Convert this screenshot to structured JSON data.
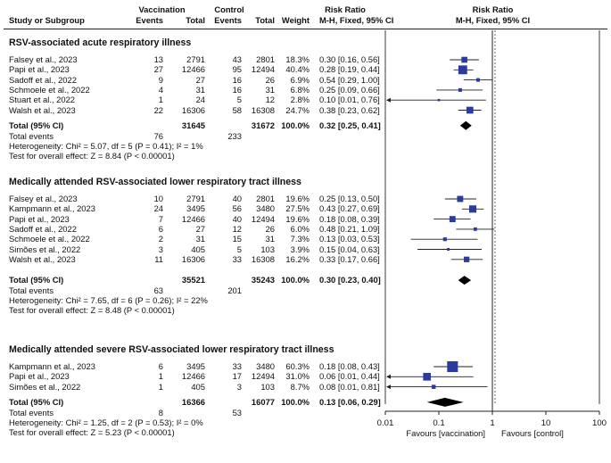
{
  "header": {
    "study": "Study or Subgroup",
    "vaccination": "Vaccination",
    "control": "Control",
    "events": "Events",
    "total": "Total",
    "weight": "Weight",
    "rr_title": "Risk Ratio",
    "rr_method": "M-H, Fixed, 95% CI",
    "plot_title": "Risk Ratio",
    "plot_method": "M-H, Fixed, 95% CI"
  },
  "chart_data": {
    "type": "forest",
    "scale": "log",
    "x_range": [
      0.01,
      100
    ],
    "reference_line": 1,
    "axis_ticks": [
      "0.01",
      "0.1",
      "1",
      "10",
      "100"
    ],
    "favours_left": "Favours [vaccination]",
    "favours_right": "Favours [control]",
    "subgroups": [
      {
        "title": "RSV-associated acute respiratory illness",
        "studies": [
          {
            "study": "Falsey et al., 2023",
            "ve": "13",
            "vt": "2791",
            "ce": "43",
            "ct": "2801",
            "w": "18.3%",
            "ci": "0.30 [0.16, 0.56]",
            "rr": 0.3,
            "lo": 0.16,
            "hi": 0.56,
            "wn": 18.3
          },
          {
            "study": "Papi et al., 2023",
            "ve": "27",
            "vt": "12466",
            "ce": "95",
            "ct": "12494",
            "w": "40.4%",
            "ci": "0.28 [0.19, 0.44]",
            "rr": 0.28,
            "lo": 0.19,
            "hi": 0.44,
            "wn": 40.4
          },
          {
            "study": "Sadoff et al., 2022",
            "ve": "9",
            "vt": "27",
            "ce": "16",
            "ct": "26",
            "w": "6.9%",
            "ci": "0.54 [0.29, 1.00]",
            "rr": 0.54,
            "lo": 0.29,
            "hi": 1.0,
            "wn": 6.9
          },
          {
            "study": "Schmoele et al., 2022",
            "ve": "4",
            "vt": "31",
            "ce": "16",
            "ct": "31",
            "w": "6.8%",
            "ci": "0.25 [0.09, 0.66]",
            "rr": 0.25,
            "lo": 0.09,
            "hi": 0.66,
            "wn": 6.8
          },
          {
            "study": "Stuart et al., 2022",
            "ve": "1",
            "vt": "24",
            "ce": "5",
            "ct": "12",
            "w": "2.8%",
            "ci": "0.10 [0.01, 0.76]",
            "rr": 0.1,
            "lo": 0.01,
            "hi": 0.76,
            "wn": 2.8
          },
          {
            "study": "Walsh et al., 2023",
            "ve": "22",
            "vt": "16306",
            "ce": "58",
            "ct": "16308",
            "w": "24.7%",
            "ci": "0.38 [0.23, 0.62]",
            "rr": 0.38,
            "lo": 0.23,
            "hi": 0.62,
            "wn": 24.7
          }
        ],
        "total": {
          "label": "Total (95% CI)",
          "vt": "31645",
          "ct": "31672",
          "w": "100.0%",
          "ci": "0.32 [0.25, 0.41]",
          "rr": 0.32,
          "lo": 0.25,
          "hi": 0.41
        },
        "events": {
          "label": "Total events",
          "v": "76",
          "c": "233"
        },
        "heterogeneity": "Heterogeneity: Chi² = 5.07, df = 5 (P = 0.41); I² = 1%",
        "overall": "Test for overall effect: Z = 8.84 (P < 0.00001)"
      },
      {
        "title": "Medically attended RSV-associated lower respiratory tract illness",
        "studies": [
          {
            "study": "Falsey et al., 2023",
            "ve": "10",
            "vt": "2791",
            "ce": "40",
            "ct": "2801",
            "w": "19.6%",
            "ci": "0.25 [0.13, 0.50]",
            "rr": 0.25,
            "lo": 0.13,
            "hi": 0.5,
            "wn": 19.6
          },
          {
            "study": "Kampmann et al., 2023",
            "ve": "24",
            "vt": "3495",
            "ce": "56",
            "ct": "3480",
            "w": "27.5%",
            "ci": "0.43 [0.27, 0.69]",
            "rr": 0.43,
            "lo": 0.27,
            "hi": 0.69,
            "wn": 27.5
          },
          {
            "study": "Papi et al., 2023",
            "ve": "7",
            "vt": "12466",
            "ce": "40",
            "ct": "12494",
            "w": "19.6%",
            "ci": "0.18 [0.08, 0.39]",
            "rr": 0.18,
            "lo": 0.08,
            "hi": 0.39,
            "wn": 19.6
          },
          {
            "study": "Sadoff et al., 2022",
            "ve": "6",
            "vt": "27",
            "ce": "12",
            "ct": "26",
            "w": "6.0%",
            "ci": "0.48 [0.21, 1.09]",
            "rr": 0.48,
            "lo": 0.21,
            "hi": 1.09,
            "wn": 6.0
          },
          {
            "study": "Schmoele et al., 2022",
            "ve": "2",
            "vt": "31",
            "ce": "15",
            "ct": "31",
            "w": "7.3%",
            "ci": "0.13 [0.03, 0.53]",
            "rr": 0.13,
            "lo": 0.03,
            "hi": 0.53,
            "wn": 7.3
          },
          {
            "study": "Simões et al., 2022",
            "ve": "3",
            "vt": "405",
            "ce": "5",
            "ct": "103",
            "w": "3.9%",
            "ci": "0.15 [0.04, 0.63]",
            "rr": 0.15,
            "lo": 0.04,
            "hi": 0.63,
            "wn": 3.9
          },
          {
            "study": "Walsh et al., 2023",
            "ve": "11",
            "vt": "16306",
            "ce": "33",
            "ct": "16308",
            "w": "16.2%",
            "ci": "0.33 [0.17, 0.66]",
            "rr": 0.33,
            "lo": 0.17,
            "hi": 0.66,
            "wn": 16.2
          }
        ],
        "total": {
          "label": "Total (95% CI)",
          "vt": "35521",
          "ct": "35243",
          "w": "100.0%",
          "ci": "0.30 [0.23, 0.40]",
          "rr": 0.3,
          "lo": 0.23,
          "hi": 0.4
        },
        "events": {
          "label": "Total events",
          "v": "63",
          "c": "201"
        },
        "heterogeneity": "Heterogeneity: Chi² = 7.65, df = 6 (P = 0.26); I² = 22%",
        "overall": "Test for overall effect: Z = 8.48 (P < 0.00001)"
      },
      {
        "title": "Medically attended severe RSV-associated lower respiratory tract illness",
        "studies": [
          {
            "study": "Kampmann et al., 2023",
            "ve": "6",
            "vt": "3495",
            "ce": "33",
            "ct": "3480",
            "w": "60.3%",
            "ci": "0.18 [0.08, 0.43]",
            "rr": 0.18,
            "lo": 0.08,
            "hi": 0.43,
            "wn": 60.3
          },
          {
            "study": "Papi et al., 2023",
            "ve": "1",
            "vt": "12466",
            "ce": "17",
            "ct": "12494",
            "w": "31.0%",
            "ci": "0.06 [0.01, 0.44]",
            "rr": 0.06,
            "lo": 0.01,
            "hi": 0.44,
            "wn": 31.0
          },
          {
            "study": "Simões et al., 2022",
            "ve": "1",
            "vt": "405",
            "ce": "3",
            "ct": "103",
            "w": "8.7%",
            "ci": "0.08 [0.01, 0.81]",
            "rr": 0.08,
            "lo": 0.01,
            "hi": 0.81,
            "wn": 8.7
          }
        ],
        "total": {
          "label": "Total (95% CI)",
          "vt": "16366",
          "ct": "16077",
          "w": "100.0%",
          "ci": "0.13 [0.06, 0.29]",
          "rr": 0.13,
          "lo": 0.06,
          "hi": 0.29
        },
        "events": {
          "label": "Total events",
          "v": "8",
          "c": "53"
        },
        "heterogeneity": "Heterogeneity: Chi² = 1.25, df = 2 (P = 0.53); I² = 0%",
        "overall": "Test for overall effect: Z = 5.23 (P < 0.00001)"
      }
    ]
  },
  "colors": {
    "marker": "#2b3a9f",
    "text": "#111111",
    "line": "#222222"
  }
}
